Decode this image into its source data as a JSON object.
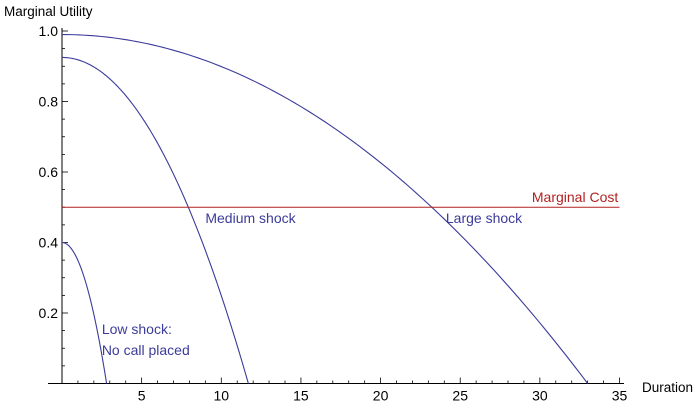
{
  "chart_data": {
    "type": "line",
    "title": "",
    "xlabel": "Duration",
    "ylabel": "Marginal Utility",
    "xlim": [
      0,
      35
    ],
    "ylim": [
      0,
      1.0
    ],
    "x_ticks": [
      5,
      10,
      15,
      20,
      25,
      30,
      35
    ],
    "y_ticks": [
      0.2,
      0.4,
      0.6,
      0.8,
      1.0
    ],
    "x_tick_labels": [
      "5",
      "10",
      "15",
      "20",
      "25",
      "30",
      "35"
    ],
    "y_tick_labels": [
      "0.2",
      "0.4",
      "0.6",
      "0.8",
      "1.0"
    ],
    "grid": false,
    "colors": {
      "curves": "#3b3b9a",
      "cost": "#b22222",
      "axis": "#000000"
    },
    "series": [
      {
        "name": "Low shock: No call placed",
        "intercept": 0.4,
        "zero_at": 2.8,
        "x": [
          0,
          0.5,
          1.0,
          1.5,
          2.0,
          2.5,
          2.8
        ],
        "y": [
          0.4,
          0.387,
          0.349,
          0.286,
          0.198,
          0.085,
          0
        ]
      },
      {
        "name": "Medium shock",
        "intercept": 0.925,
        "zero_at": 11.7,
        "x": [
          0,
          2,
          4,
          6,
          8,
          10,
          11.7
        ],
        "y": [
          0.925,
          0.898,
          0.817,
          0.683,
          0.494,
          0.249,
          0
        ]
      },
      {
        "name": "Large shock",
        "intercept": 0.99,
        "zero_at": 33.0,
        "x": [
          0,
          5,
          10,
          15,
          20,
          25,
          30,
          33
        ],
        "y": [
          0.99,
          0.967,
          0.899,
          0.784,
          0.626,
          0.417,
          0.172,
          0
        ]
      },
      {
        "name": "Marginal Cost",
        "constant": 0.5,
        "x": [
          0,
          35
        ],
        "y": [
          0.5,
          0.5
        ]
      }
    ],
    "annotations": [
      {
        "lines": [
          "Marginal Cost"
        ],
        "x": 29.5,
        "y": 0.515,
        "color": "cost"
      },
      {
        "lines": [
          "Medium shock"
        ],
        "x": 9.0,
        "y": 0.455,
        "color": "curves"
      },
      {
        "lines": [
          "Large shock"
        ],
        "x": 24.1,
        "y": 0.455,
        "color": "curves"
      },
      {
        "lines": [
          "Low shock:",
          "No call placed"
        ],
        "x": 2.5,
        "y": 0.14,
        "color": "curves"
      }
    ]
  }
}
